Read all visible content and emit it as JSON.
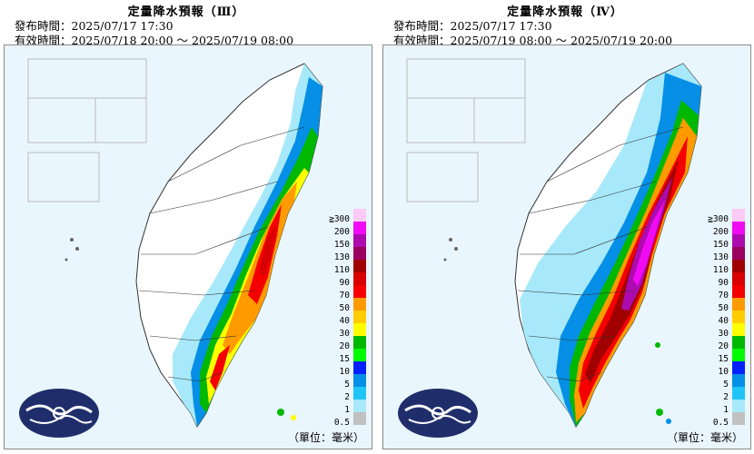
{
  "panels": [
    {
      "title": "定量降水預報（Ⅲ）",
      "issued": "發布時間：2025/07/17 17:30",
      "valid": "有效時間：2025/07/18 20:00 ～ 2025/07/19 08:00",
      "unit": "（單位：毫米）"
    },
    {
      "title": "定量降水預報（Ⅳ）",
      "issued": "發布時間：2025/07/17 17:30",
      "valid": "有效時間：2025/07/19 08:00 ～ 2025/07/19 20:00",
      "unit": "（單位：毫米）"
    }
  ],
  "legend": {
    "top_label": "≧300",
    "labels": [
      "200",
      "150",
      "130",
      "110",
      "90",
      "70",
      "50",
      "40",
      "30",
      "20",
      "15",
      "10",
      "5",
      "2",
      "1",
      "0.5"
    ],
    "colors": [
      "#fdc9f5",
      "#f10bf4",
      "#ac0bb0",
      "#9a0060",
      "#a10000",
      "#d80000",
      "#f50000",
      "#ff9a00",
      "#ffcd00",
      "#fefe00",
      "#00b800",
      "#00fa00",
      "#0022ff",
      "#058fe6",
      "#20c5f7",
      "#a7e9fb",
      "#c1c1c1"
    ]
  },
  "logo": "cwa-logo"
}
